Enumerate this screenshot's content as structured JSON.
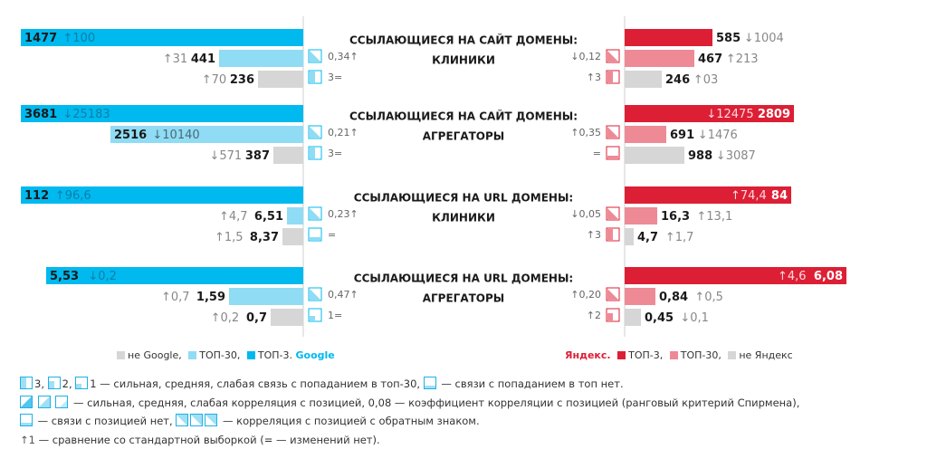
{
  "colors": {
    "google_top3": "#00b9ef",
    "google_top30": "#8fdcf4",
    "not_google": "#d6d6d6",
    "yandex_top3": "#dc1f35",
    "yandex_top30": "#ee8a96",
    "not_yandex": "#d6d6d6",
    "up_arrow": "#888888"
  },
  "chart_data": {
    "type": "bar",
    "layout": "mirrored horizontal bars",
    "blocks": [
      {
        "title_line1": "ССЫЛАЮЩИЕСЯ НА САЙТ ДОМЕНЫ:",
        "title_line2": "КЛИНИКИ",
        "google": [
          {
            "series": "ТОП-3",
            "value": 1477,
            "label": "1477",
            "change": "↑100"
          },
          {
            "series": "ТОП-30",
            "value": 441,
            "label": "441",
            "change": "↑31"
          },
          {
            "series": "не Google",
            "value": 236,
            "label": "236",
            "change": "↑70"
          }
        ],
        "google_icons": [
          {
            "kind": "tri",
            "text": "0,34↑"
          },
          {
            "kind": "bar3",
            "text": "3="
          }
        ],
        "yandex": [
          {
            "series": "ТОП-3",
            "value": 585,
            "label": "585",
            "change": "↓1004"
          },
          {
            "series": "ТОП-30",
            "value": 467,
            "label": "467",
            "change": "↑213"
          },
          {
            "series": "не Яндекс",
            "value": 246,
            "label": "246",
            "change": "↑03"
          }
        ],
        "yandex_icons": [
          {
            "kind": "tri",
            "text": "↓0,12"
          },
          {
            "kind": "bar3",
            "text": "↑3"
          }
        ]
      },
      {
        "title_line1": "ССЫЛАЮЩИЕСЯ НА САЙТ ДОМЕНЫ:",
        "title_line2": "АГРЕГАТОРЫ",
        "google": [
          {
            "series": "ТОП-3",
            "value": 3681,
            "label": "3681",
            "change": "↓25183"
          },
          {
            "series": "ТОП-30",
            "value": 2516,
            "label": "2516",
            "change": "↓10140"
          },
          {
            "series": "не Google",
            "value": 387,
            "label": "387",
            "change": "↓571"
          }
        ],
        "google_icons": [
          {
            "kind": "tri",
            "text": "0,21↑"
          },
          {
            "kind": "bar3",
            "text": "3="
          }
        ],
        "yandex": [
          {
            "series": "ТОП-3",
            "value": 2809,
            "label": "2809",
            "change": "↓12475"
          },
          {
            "series": "ТОП-30",
            "value": 691,
            "label": "691",
            "change": "↓1476"
          },
          {
            "series": "не Яндекс",
            "value": 988,
            "label": "988",
            "change": "↓3087"
          }
        ],
        "yandex_icons": [
          {
            "kind": "tri",
            "text": "↑0,35"
          },
          {
            "kind": "none",
            "text": "="
          }
        ]
      },
      {
        "title_line1": "ССЫЛАЮЩИЕСЯ НА URL ДОМЕНЫ:",
        "title_line2": "КЛИНИКИ",
        "google": [
          {
            "series": "ТОП-3",
            "value": 112,
            "label": "112",
            "change": "↑96,6"
          },
          {
            "series": "ТОП-30",
            "value": 6.51,
            "label": "6,51",
            "change": "↑4,7"
          },
          {
            "series": "не Google",
            "value": 8.37,
            "label": "8,37",
            "change": "↑1,5"
          }
        ],
        "google_icons": [
          {
            "kind": "tri",
            "text": "0,23↑"
          },
          {
            "kind": "none",
            "text": "="
          }
        ],
        "yandex": [
          {
            "series": "ТОП-3",
            "value": 84,
            "label": "84",
            "change": "↑74,4"
          },
          {
            "series": "ТОП-30",
            "value": 16.3,
            "label": "16,3",
            "change": "↑13,1"
          },
          {
            "series": "не Яндекс",
            "value": 4.7,
            "label": "4,7",
            "change": "↑1,7"
          }
        ],
        "yandex_icons": [
          {
            "kind": "tri",
            "text": "↓0,05"
          },
          {
            "kind": "bar3",
            "text": "↑3"
          }
        ]
      },
      {
        "title_line1": "ССЫЛАЮЩИЕСЯ НА URL ДОМЕНЫ:",
        "title_line2": "АГРЕГАТОРЫ",
        "google": [
          {
            "series": "ТОП-3",
            "value": 5.53,
            "label": "5,53",
            "change": "↓0,2"
          },
          {
            "series": "ТОП-30",
            "value": 1.59,
            "label": "1,59",
            "change": "↑0,7"
          },
          {
            "series": "не Google",
            "value": 0.7,
            "label": "0,7",
            "change": "↑0,2"
          }
        ],
        "google_icons": [
          {
            "kind": "tri",
            "text": "0,47↑"
          },
          {
            "kind": "bar1",
            "text": "1="
          }
        ],
        "yandex": [
          {
            "series": "ТОП-3",
            "value": 6.08,
            "label": "6,08",
            "change": "↑4,6"
          },
          {
            "series": "ТОП-30",
            "value": 0.84,
            "label": "0,84",
            "change": "↑0,5"
          },
          {
            "series": "не Яндекс",
            "value": 0.45,
            "label": "0,45",
            "change": "↓0,1"
          }
        ],
        "yandex_icons": [
          {
            "kind": "tri",
            "text": "↑0,20"
          },
          {
            "kind": "bar2",
            "text": "↑2"
          }
        ]
      }
    ]
  },
  "legend": {
    "google": {
      "not_google": "не Google,",
      "top30": "ТОП-30,",
      "top3": "ТОП-3.",
      "brand": "Google"
    },
    "yandex": {
      "brand": "Яндекс.",
      "top3": "ТОП-3,",
      "top30": "ТОП-30,",
      "not_yandex": "не Яндекс"
    }
  },
  "notes": {
    "line1_nums": [
      "3,",
      "2,",
      "1"
    ],
    "line1_text": "— сильная, средняя, слабая связь с попаданием в топ-30,",
    "line1_text2": "— связи с попаданием в топ нет.",
    "line2_text": "— сильная, средняя, слабая корреляция с позицией, 0,08 — коэффициент корреляции с позицией (ранговый критерий Спирмена),",
    "line3_text1": "— связи с позицией нет,",
    "line3_text2": "— корреляция с позицией с обратным знаком.",
    "line4_arrow": "↑1",
    "line4_text": "— сравнение со стандартной выборкой (= — изменений нет)."
  }
}
